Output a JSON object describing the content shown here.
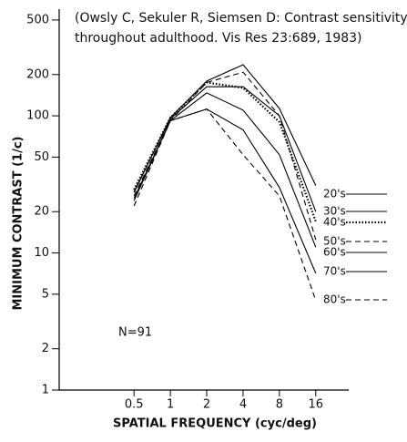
{
  "chart_data": {
    "type": "line",
    "annotation": [
      "(Owsly C, Sekuler R, Siemsen D: Contrast sensitivity",
      "throughout adulthood. Vis Res 23:689, 1983)"
    ],
    "note": "N=91",
    "xlabel": "SPATIAL FREQUENCY (cyc/deg)",
    "ylabel": "MINIMUM CONTRAST (1/c)",
    "logx": true,
    "logy": true,
    "x": [
      0.5,
      1,
      2,
      4,
      8,
      16
    ],
    "xlim": [
      0.12,
      30
    ],
    "xticks": [
      0.5,
      1,
      2,
      4,
      8,
      16
    ],
    "ylim": [
      1,
      600
    ],
    "yticks": [
      1,
      2,
      5,
      10,
      20,
      50,
      100,
      200,
      500
    ],
    "series": [
      {
        "name": "20's",
        "color": "#000000",
        "style": "solid",
        "values": [
          27.5,
          97,
          179,
          236,
          113,
          31
        ]
      },
      {
        "name": "30's",
        "color": "#000000",
        "style": "solid",
        "values": [
          28,
          95,
          163,
          163,
          100,
          20
        ]
      },
      {
        "name": "40's",
        "color": "#000000",
        "style": "dotted",
        "values": [
          29,
          97,
          175,
          160,
          90,
          17
        ]
      },
      {
        "name": "50's",
        "color": "#000000",
        "style": "dashed",
        "values": [
          26,
          92,
          175,
          208,
          100,
          12.5
        ]
      },
      {
        "name": "60's",
        "color": "#000000",
        "style": "solid",
        "values": [
          25,
          92,
          147,
          110,
          52,
          11
        ]
      },
      {
        "name": "70's",
        "color": "#000000",
        "style": "solid",
        "values": [
          24,
          92,
          112,
          79,
          30,
          7.1
        ]
      },
      {
        "name": "80's",
        "color": "#000000",
        "style": "dashed",
        "values": [
          22,
          92,
          112,
          52,
          26,
          4.5
        ]
      }
    ]
  }
}
